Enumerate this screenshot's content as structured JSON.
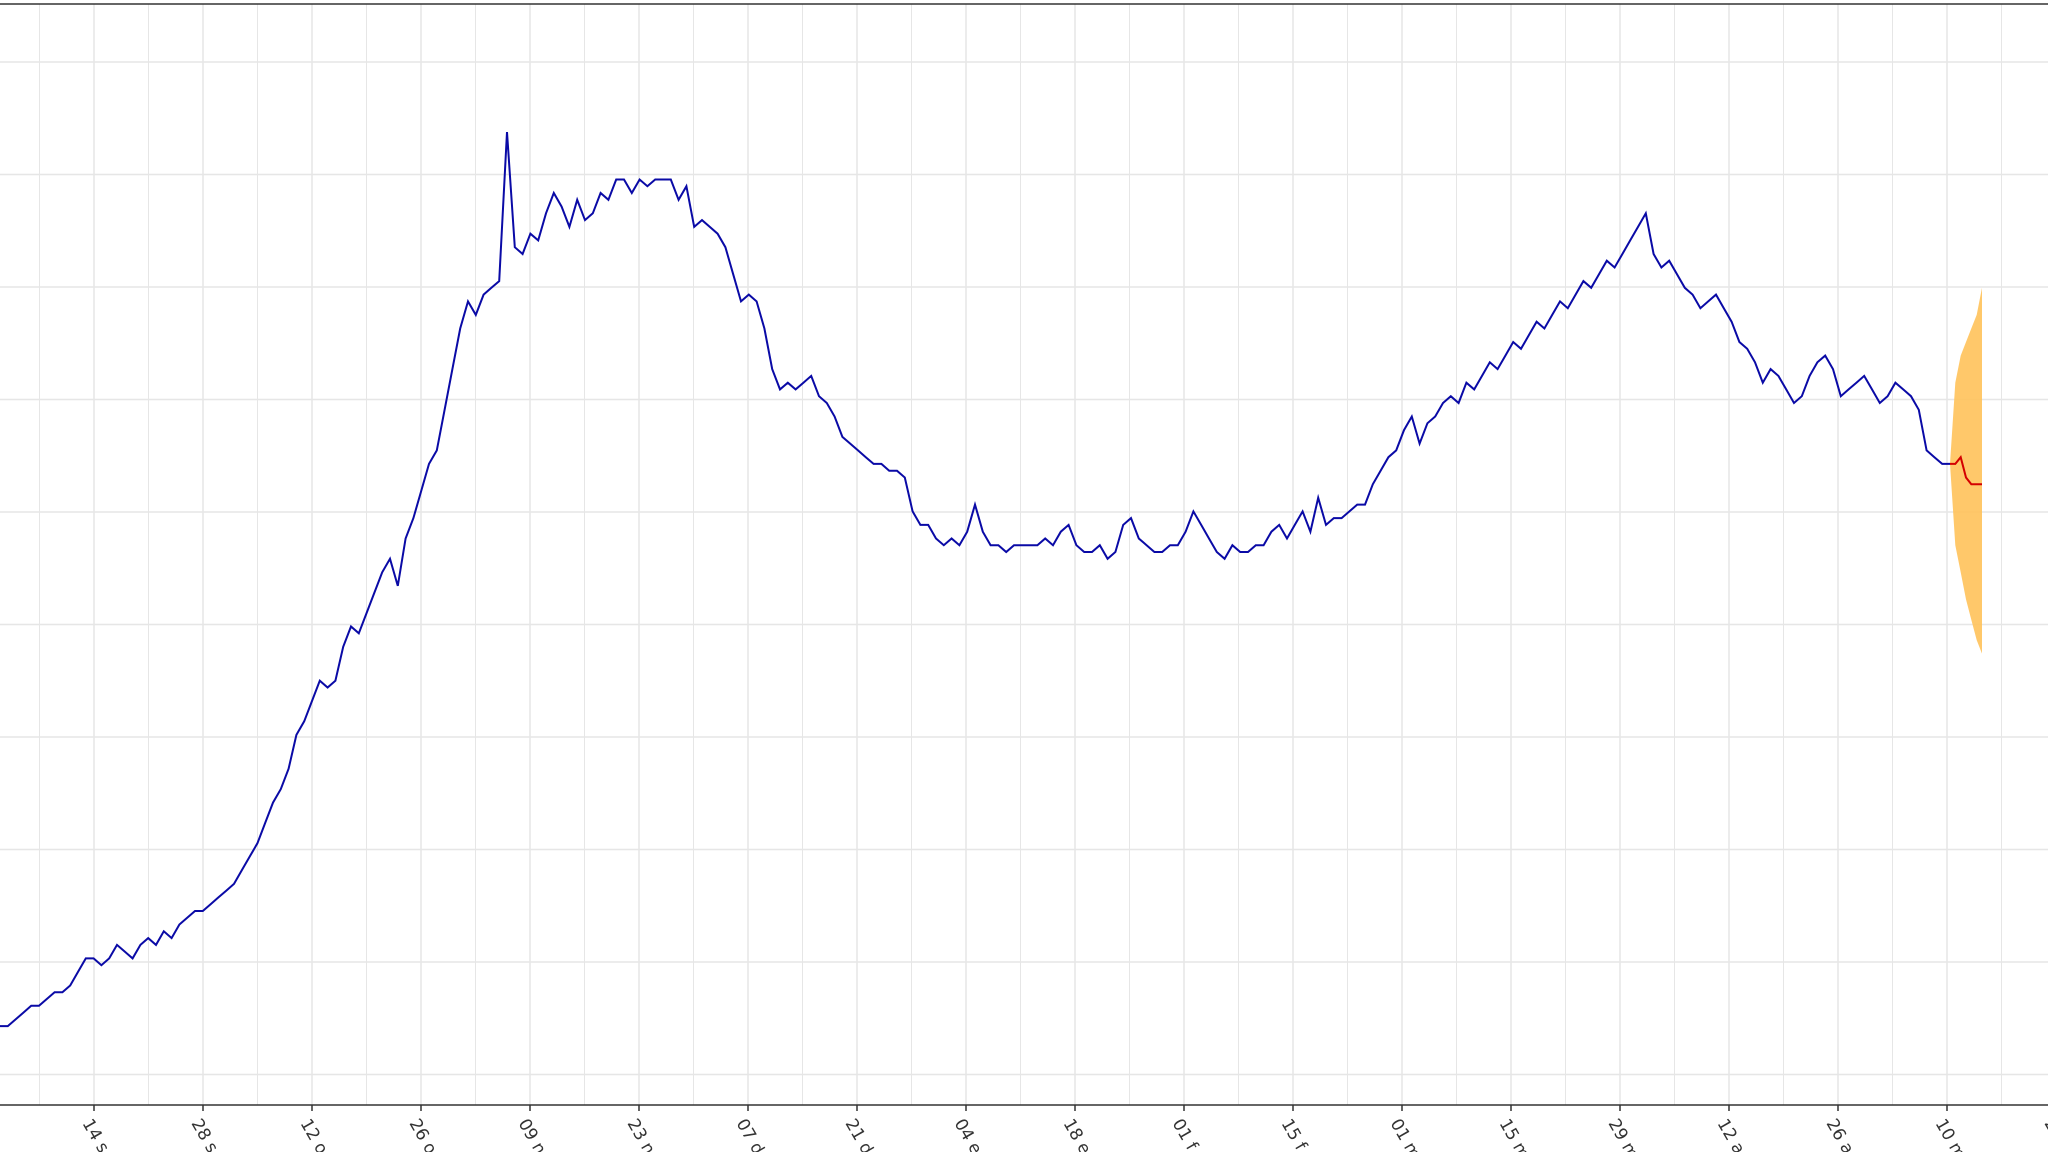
{
  "chart_data": {
    "type": "line",
    "title": "",
    "xlabel": "",
    "ylabel": "",
    "grid": true,
    "colors": {
      "history": "#0a0aa6",
      "forecast": "#d40000",
      "band": "#ffc25a",
      "grid": "#e6e6e6",
      "axis": "#333333",
      "tick_text": "#333333"
    },
    "x_ticks": [
      "14 s",
      "28 s",
      "12 o",
      "26 o",
      "09 n",
      "23 n",
      "07 d",
      "21 d",
      "04 e",
      "18 e",
      "01 f",
      "15 f",
      "01 m",
      "15 m",
      "29 m",
      "12 a",
      "26 a",
      "10 m",
      "24"
    ],
    "x_ticks_note": "tick labels are cut off at the image edge; only the visible characters are kept",
    "history": [
      0.5,
      0.5,
      0.6,
      0.7,
      0.8,
      0.8,
      0.9,
      1.0,
      1.0,
      1.1,
      1.3,
      1.5,
      1.5,
      1.4,
      1.5,
      1.7,
      1.6,
      1.5,
      1.7,
      1.8,
      1.7,
      1.9,
      1.8,
      2.0,
      2.1,
      2.2,
      2.2,
      2.3,
      2.4,
      2.5,
      2.6,
      2.8,
      3.0,
      3.2,
      3.5,
      3.8,
      4.0,
      4.3,
      4.8,
      5.0,
      5.3,
      5.6,
      5.5,
      5.6,
      6.1,
      6.4,
      6.3,
      6.6,
      6.9,
      7.2,
      7.4,
      7.0,
      7.7,
      8.0,
      8.4,
      8.8,
      9.0,
      9.6,
      10.2,
      10.8,
      11.2,
      11.0,
      11.3,
      11.4,
      11.5,
      13.7,
      12.0,
      11.9,
      12.2,
      12.1,
      12.5,
      12.8,
      12.6,
      12.3,
      12.7,
      12.4,
      12.5,
      12.8,
      12.7,
      13.0,
      13.0,
      12.8,
      13.0,
      12.9,
      13.0,
      13.0,
      13.0,
      12.7,
      12.9,
      12.3,
      12.4,
      12.3,
      12.2,
      12.0,
      11.6,
      11.2,
      11.3,
      11.2,
      10.8,
      10.2,
      9.9,
      10.0,
      9.9,
      10.0,
      10.1,
      9.8,
      9.7,
      9.5,
      9.2,
      9.1,
      9.0,
      8.9,
      8.8,
      8.8,
      8.7,
      8.7,
      8.6,
      8.1,
      7.9,
      7.9,
      7.7,
      7.6,
      7.7,
      7.6,
      7.8,
      8.2,
      7.8,
      7.6,
      7.6,
      7.5,
      7.6,
      7.6,
      7.6,
      7.6,
      7.7,
      7.6,
      7.8,
      7.9,
      7.6,
      7.5,
      7.5,
      7.6,
      7.4,
      7.5,
      7.9,
      8.0,
      7.7,
      7.6,
      7.5,
      7.5,
      7.6,
      7.6,
      7.8,
      8.1,
      7.9,
      7.7,
      7.5,
      7.4,
      7.6,
      7.5,
      7.5,
      7.6,
      7.6,
      7.8,
      7.9,
      7.7,
      7.9,
      8.1,
      7.8,
      8.3,
      7.9,
      8.0,
      8.0,
      8.1,
      8.2,
      8.2,
      8.5,
      8.7,
      8.9,
      9.0,
      9.3,
      9.5,
      9.1,
      9.4,
      9.5,
      9.7,
      9.8,
      9.7,
      10.0,
      9.9,
      10.1,
      10.3,
      10.2,
      10.4,
      10.6,
      10.5,
      10.7,
      10.9,
      10.8,
      11.0,
      11.2,
      11.1,
      11.3,
      11.5,
      11.4,
      11.6,
      11.8,
      11.7,
      11.9,
      12.1,
      12.3,
      12.5,
      11.9,
      11.7,
      11.8,
      11.6,
      11.4,
      11.3,
      11.1,
      11.2,
      11.3,
      11.1,
      10.9,
      10.6,
      10.5,
      10.3,
      10.0,
      10.2,
      10.1,
      9.9,
      9.7,
      9.8,
      10.1,
      10.3,
      10.4,
      10.2,
      9.8,
      9.9,
      10.0,
      10.1,
      9.9,
      9.7,
      9.8,
      10.0,
      9.9,
      9.8,
      9.6,
      9.0,
      8.9,
      8.8,
      8.8
    ],
    "forecast": [
      8.8,
      8.8,
      8.9,
      8.6,
      8.5,
      8.5,
      8.5
    ],
    "forecast_lower": [
      8.8,
      7.6,
      7.2,
      6.8,
      6.5,
      6.2,
      6.0
    ],
    "forecast_upper": [
      8.8,
      10.0,
      10.4,
      10.6,
      10.8,
      11.0,
      11.4
    ],
    "ylim": [
      0,
      15
    ]
  }
}
